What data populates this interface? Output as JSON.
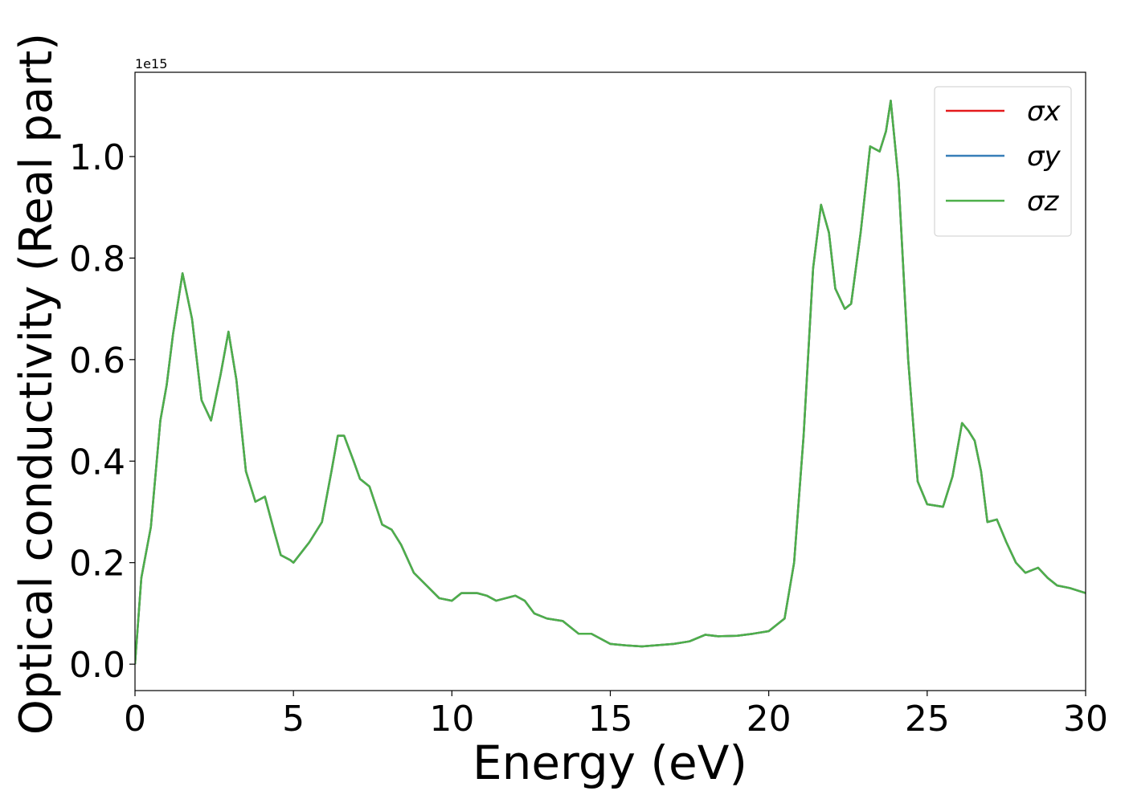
{
  "chart_data": {
    "type": "line",
    "x_label": "Energy (eV)",
    "y_label": "Optical conductivity (Real part)",
    "y_offset_label": "1e15",
    "x": [
      0,
      0.2,
      0.5,
      0.8,
      1.0,
      1.2,
      1.5,
      1.8,
      2.1,
      2.4,
      2.7,
      2.95,
      3.2,
      3.5,
      3.8,
      4.1,
      4.4,
      4.6,
      4.9,
      5.0,
      5.5,
      5.9,
      6.2,
      6.4,
      6.6,
      6.9,
      7.1,
      7.4,
      7.8,
      8.1,
      8.4,
      8.8,
      9.2,
      9.6,
      10.0,
      10.3,
      10.8,
      11.1,
      11.4,
      11.7,
      12.0,
      12.3,
      12.6,
      13.0,
      13.5,
      14.0,
      14.4,
      15.0,
      15.5,
      16.0,
      17.0,
      17.5,
      18.0,
      18.4,
      19.0,
      19.5,
      20.0,
      20.5,
      20.8,
      21.1,
      21.4,
      21.65,
      21.9,
      22.1,
      22.4,
      22.6,
      22.9,
      23.2,
      23.5,
      23.7,
      23.85,
      24.1,
      24.4,
      24.7,
      25.0,
      25.5,
      25.8,
      26.1,
      26.3,
      26.5,
      26.7,
      26.9,
      27.2,
      27.5,
      27.8,
      28.1,
      28.5,
      28.8,
      29.1,
      29.5,
      30.0
    ],
    "series": [
      {
        "name": "σx",
        "color": "#e41a1c",
        "values": [
          0.0,
          0.17,
          0.27,
          0.48,
          0.55,
          0.65,
          0.77,
          0.68,
          0.52,
          0.48,
          0.57,
          0.655,
          0.56,
          0.38,
          0.32,
          0.33,
          0.26,
          0.215,
          0.205,
          0.2,
          0.24,
          0.28,
          0.38,
          0.45,
          0.45,
          0.4,
          0.365,
          0.35,
          0.275,
          0.265,
          0.235,
          0.18,
          0.155,
          0.13,
          0.125,
          0.14,
          0.14,
          0.135,
          0.125,
          0.13,
          0.135,
          0.125,
          0.1,
          0.09,
          0.085,
          0.06,
          0.06,
          0.04,
          0.037,
          0.035,
          0.04,
          0.045,
          0.058,
          0.055,
          0.056,
          0.06,
          0.065,
          0.09,
          0.2,
          0.45,
          0.78,
          0.905,
          0.85,
          0.74,
          0.7,
          0.71,
          0.85,
          1.02,
          1.01,
          1.05,
          1.11,
          0.95,
          0.6,
          0.36,
          0.315,
          0.31,
          0.37,
          0.475,
          0.46,
          0.44,
          0.38,
          0.28,
          0.285,
          0.24,
          0.2,
          0.18,
          0.19,
          0.17,
          0.155,
          0.15,
          0.14
        ]
      },
      {
        "name": "σy",
        "color": "#377eb8",
        "values": [
          0.0,
          0.17,
          0.27,
          0.48,
          0.55,
          0.65,
          0.77,
          0.68,
          0.52,
          0.48,
          0.57,
          0.655,
          0.56,
          0.38,
          0.32,
          0.33,
          0.26,
          0.215,
          0.205,
          0.2,
          0.24,
          0.28,
          0.38,
          0.45,
          0.45,
          0.4,
          0.365,
          0.35,
          0.275,
          0.265,
          0.235,
          0.18,
          0.155,
          0.13,
          0.125,
          0.14,
          0.14,
          0.135,
          0.125,
          0.13,
          0.135,
          0.125,
          0.1,
          0.09,
          0.085,
          0.06,
          0.06,
          0.04,
          0.037,
          0.035,
          0.04,
          0.045,
          0.058,
          0.055,
          0.056,
          0.06,
          0.065,
          0.09,
          0.2,
          0.45,
          0.78,
          0.905,
          0.85,
          0.74,
          0.7,
          0.71,
          0.85,
          1.02,
          1.01,
          1.05,
          1.11,
          0.95,
          0.6,
          0.36,
          0.315,
          0.31,
          0.37,
          0.475,
          0.46,
          0.44,
          0.38,
          0.28,
          0.285,
          0.24,
          0.2,
          0.18,
          0.19,
          0.17,
          0.155,
          0.15,
          0.14
        ]
      },
      {
        "name": "σz",
        "color": "#4daf4a",
        "values": [
          0.0,
          0.17,
          0.27,
          0.48,
          0.55,
          0.65,
          0.77,
          0.68,
          0.52,
          0.48,
          0.57,
          0.655,
          0.56,
          0.38,
          0.32,
          0.33,
          0.26,
          0.215,
          0.205,
          0.2,
          0.24,
          0.28,
          0.38,
          0.45,
          0.45,
          0.4,
          0.365,
          0.35,
          0.275,
          0.265,
          0.235,
          0.18,
          0.155,
          0.13,
          0.125,
          0.14,
          0.14,
          0.135,
          0.125,
          0.13,
          0.135,
          0.125,
          0.1,
          0.09,
          0.085,
          0.06,
          0.06,
          0.04,
          0.037,
          0.035,
          0.04,
          0.045,
          0.058,
          0.055,
          0.056,
          0.06,
          0.065,
          0.09,
          0.2,
          0.45,
          0.78,
          0.905,
          0.85,
          0.74,
          0.7,
          0.71,
          0.85,
          1.02,
          1.01,
          1.05,
          1.11,
          0.95,
          0.6,
          0.36,
          0.315,
          0.31,
          0.37,
          0.475,
          0.46,
          0.44,
          0.38,
          0.28,
          0.285,
          0.24,
          0.2,
          0.18,
          0.19,
          0.17,
          0.155,
          0.15,
          0.14
        ]
      }
    ],
    "xlim": [
      0,
      30
    ],
    "xticks": [
      0,
      5,
      10,
      15,
      20,
      25,
      30
    ],
    "ylim": [
      -0.052,
      1.166
    ],
    "yticks": [
      {
        "value": 0,
        "label": "0.0"
      },
      0.2,
      0.4,
      0.6,
      0.8,
      {
        "value": 1,
        "label": "1.0"
      }
    ],
    "grid": false,
    "legend": "upper right"
  }
}
